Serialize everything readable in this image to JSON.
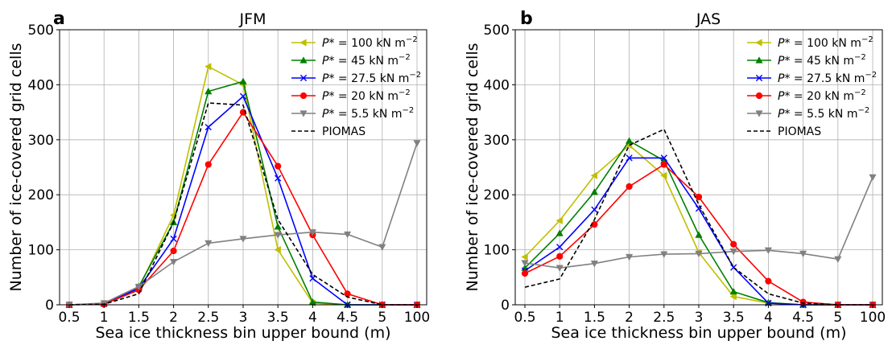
{
  "chart_data": [
    {
      "type": "line",
      "panel_label": "a",
      "title": "JFM",
      "xlabel": "Sea ice thickness bin upper bound (m)",
      "ylabel": "Number of ice-covered grid cells",
      "categories": [
        "0.5",
        "1",
        "1.5",
        "2",
        "2.5",
        "3",
        "3.5",
        "4",
        "4.5",
        "5",
        "100"
      ],
      "ylim": [
        0,
        500
      ],
      "yticks": [
        "0",
        "100",
        "200",
        "300",
        "400",
        "500"
      ],
      "grid": true,
      "legend_position": "top-right",
      "series": [
        {
          "name": "P* = 100 kN m⁻²",
          "legend_parts": [
            "P",
            "*",
            " = 100 kN m",
            "−2"
          ],
          "color": "#bfbf00",
          "marker": "left-triangle",
          "line": "solid",
          "values": [
            0,
            2,
            30,
            163,
            433,
            400,
            100,
            3,
            0,
            0,
            0
          ]
        },
        {
          "name": "P* = 45 kN m⁻²",
          "legend_parts": [
            "P",
            "*",
            " = 45 kN m",
            "−2"
          ],
          "color": "#008000",
          "marker": "up-triangle",
          "line": "solid",
          "values": [
            0,
            2,
            33,
            150,
            388,
            406,
            142,
            5,
            0,
            0,
            0
          ]
        },
        {
          "name": "P* = 27.5 kN m⁻²",
          "legend_parts": [
            "P",
            "*",
            " = 27.5 kN m",
            "−2"
          ],
          "color": "#0000ff",
          "marker": "x",
          "line": "solid",
          "values": [
            0,
            2,
            30,
            120,
            323,
            379,
            230,
            48,
            0,
            0,
            0
          ]
        },
        {
          "name": "P* = 20 kN m⁻²",
          "legend_parts": [
            "P",
            "*",
            " = 20 kN m",
            "−2"
          ],
          "color": "#ff0000",
          "marker": "circle",
          "line": "solid",
          "values": [
            0,
            1,
            27,
            98,
            255,
            350,
            252,
            127,
            20,
            0,
            0
          ]
        },
        {
          "name": "P* = 5.5 kN m⁻²",
          "legend_parts": [
            "P",
            "*",
            " = 5.5 kN m",
            "−2"
          ],
          "color": "#808080",
          "marker": "down-triangle",
          "line": "solid",
          "values": [
            0,
            3,
            33,
            78,
            112,
            120,
            127,
            132,
            128,
            105,
            294
          ]
        },
        {
          "name": "PIOMAS",
          "legend_parts": [
            "PIOMAS",
            "",
            "",
            ""
          ],
          "color": "#000000",
          "marker": "none",
          "line": "dashed",
          "values": [
            0,
            1,
            20,
            150,
            367,
            363,
            155,
            55,
            14,
            0,
            0
          ]
        }
      ]
    },
    {
      "type": "line",
      "panel_label": "b",
      "title": "JAS",
      "xlabel": "Sea ice thickness bin upper bound (m)",
      "ylabel": "Number of ice-covered grid cells",
      "categories": [
        "0.5",
        "1",
        "1.5",
        "2",
        "2.5",
        "3",
        "3.5",
        "4",
        "4.5",
        "5",
        "100"
      ],
      "ylim": [
        0,
        500
      ],
      "yticks": [
        "0",
        "100",
        "200",
        "300",
        "400",
        "500"
      ],
      "grid": true,
      "legend_position": "top-right",
      "series": [
        {
          "name": "P* = 100 kN m⁻²",
          "legend_parts": [
            "P",
            "*",
            " = 100 kN m",
            "−2"
          ],
          "color": "#bfbf00",
          "marker": "left-triangle",
          "line": "solid",
          "values": [
            87,
            153,
            235,
            290,
            235,
            95,
            15,
            3,
            0,
            0,
            0
          ]
        },
        {
          "name": "P* = 45 kN m⁻²",
          "legend_parts": [
            "P",
            "*",
            " = 45 kN m",
            "−2"
          ],
          "color": "#008000",
          "marker": "up-triangle",
          "line": "solid",
          "values": [
            67,
            130,
            205,
            298,
            262,
            127,
            24,
            4,
            0,
            0,
            0
          ]
        },
        {
          "name": "P* = 27.5 kN m⁻²",
          "legend_parts": [
            "P",
            "*",
            " = 27.5 kN m",
            "−2"
          ],
          "color": "#0000ff",
          "marker": "x",
          "line": "solid",
          "values": [
            62,
            105,
            173,
            267,
            267,
            175,
            68,
            3,
            0,
            0,
            0
          ]
        },
        {
          "name": "P* = 20 kN m⁻²",
          "legend_parts": [
            "P",
            "*",
            " = 20 kN m",
            "−2"
          ],
          "color": "#ff0000",
          "marker": "circle",
          "line": "solid",
          "values": [
            57,
            88,
            146,
            215,
            255,
            196,
            110,
            43,
            5,
            0,
            0
          ]
        },
        {
          "name": "P* = 5.5 kN m⁻²",
          "legend_parts": [
            "P",
            "*",
            " = 5.5 kN m",
            "−2"
          ],
          "color": "#808080",
          "marker": "down-triangle",
          "line": "solid",
          "values": [
            76,
            67,
            75,
            87,
            92,
            93,
            97,
            99,
            93,
            83,
            232
          ]
        },
        {
          "name": "PIOMAS",
          "legend_parts": [
            "PIOMAS",
            "",
            "",
            ""
          ],
          "color": "#000000",
          "marker": "none",
          "line": "dashed",
          "values": [
            32,
            47,
            155,
            290,
            319,
            182,
            68,
            20,
            3,
            0,
            0
          ]
        }
      ]
    }
  ]
}
